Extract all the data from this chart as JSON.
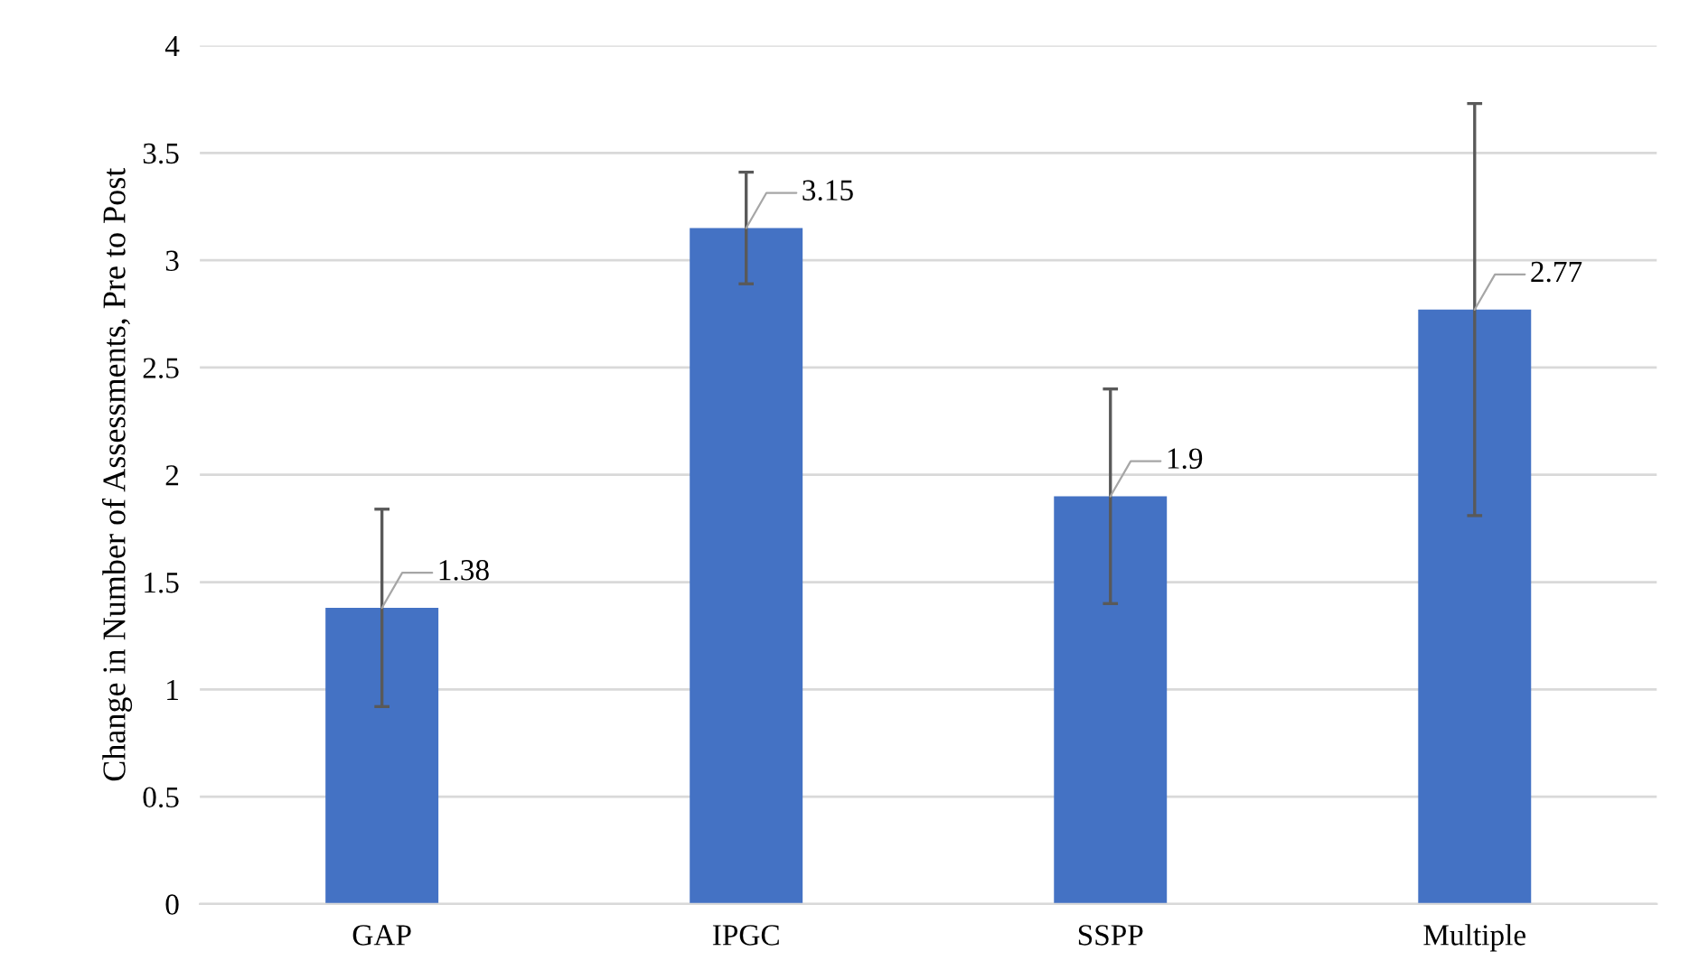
{
  "chart_data": {
    "type": "bar",
    "ylabel": "Change in Number of Assessments, Pre to Post",
    "categories": [
      "GAP",
      "IPGC",
      "SSPP",
      "Multiple"
    ],
    "values": [
      1.38,
      3.15,
      1.9,
      2.77
    ],
    "errors": [
      0.46,
      0.26,
      0.5,
      0.96
    ],
    "color": "#4472c4",
    "ylim": [
      0,
      4
    ],
    "yticks": [
      0,
      0.5,
      1,
      1.5,
      2,
      2.5,
      3,
      3.5,
      4
    ],
    "grid": "y",
    "data_labels": true
  }
}
